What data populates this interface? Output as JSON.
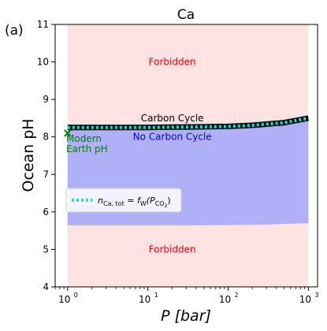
{
  "chart_data": {
    "type": "area",
    "panel_label": "(a)",
    "title": "Ca",
    "xlabel": "P [bar]",
    "ylabel": "Ocean pH",
    "xscale": "log",
    "xlim": [
      0.7,
      1300
    ],
    "ylim": [
      4,
      11
    ],
    "x_ticks": [
      1,
      10,
      100,
      1000
    ],
    "x_tick_labels": [
      "10",
      "10",
      "10",
      "10"
    ],
    "x_tick_exponents": [
      "0",
      "1",
      "2",
      "3"
    ],
    "y_ticks": [
      4,
      5,
      6,
      7,
      8,
      9,
      10,
      11
    ],
    "y_tick_labels": [
      "4",
      "5",
      "6",
      "7",
      "8",
      "9",
      "10",
      "11"
    ],
    "grid": false,
    "regions": [
      {
        "name": "Forbidden",
        "color": "#ffe2e2",
        "x_range": [
          1,
          1000
        ],
        "y_range": [
          4,
          11
        ]
      },
      {
        "name": "No Carbon Cycle",
        "color": "#b0b0f8",
        "x": [
          1,
          3,
          10,
          30,
          100,
          300,
          1000
        ],
        "lower": [
          5.64,
          5.64,
          5.64,
          5.64,
          5.65,
          5.66,
          5.7
        ],
        "upper": [
          8.25,
          8.25,
          8.25,
          8.26,
          8.28,
          8.33,
          8.48
        ]
      }
    ],
    "series": [
      {
        "name": "Carbon Cycle",
        "style": "solid",
        "color": "#000000",
        "x": [
          1,
          2,
          5,
          10,
          20,
          50,
          100,
          200,
          500,
          1000
        ],
        "y": [
          8.25,
          8.25,
          8.25,
          8.25,
          8.26,
          8.27,
          8.28,
          8.31,
          8.38,
          8.5
        ]
      },
      {
        "name": "n_Ca,tot = f_W(P_CO2)",
        "style": "dotted",
        "color": "#00e5e5",
        "x": [
          1,
          2,
          5,
          10,
          20,
          50,
          100,
          200,
          500,
          1000
        ],
        "y": [
          8.25,
          8.25,
          8.25,
          8.25,
          8.26,
          8.27,
          8.28,
          8.31,
          8.38,
          8.5
        ]
      }
    ],
    "annotations": [
      {
        "text": "Forbidden",
        "color": "#ff0000",
        "x": 10,
        "y": 10
      },
      {
        "text": "Carbon Cycle",
        "color": "#000000",
        "x": 10,
        "y": 8.5
      },
      {
        "text": "No Carbon Cycle",
        "color": "#0000dd",
        "x": 10,
        "y": 8
      },
      {
        "text": "Forbidden",
        "color": "#ff0000",
        "x": 10,
        "y": 5
      }
    ],
    "marker": {
      "symbol": "x",
      "color": "#008000",
      "x": 1,
      "y": 8.1,
      "label_line1": "Modern",
      "label_line2": "Earth pH"
    },
    "legend": {
      "location": "center-left",
      "entry_text": "n",
      "entry_sub": "Ca, tot",
      "entry_mid": " = f",
      "entry_sub2": "W",
      "entry_tail": "(P",
      "entry_sub3": "CO",
      "entry_sub4": "2",
      "entry_end": ")"
    }
  }
}
